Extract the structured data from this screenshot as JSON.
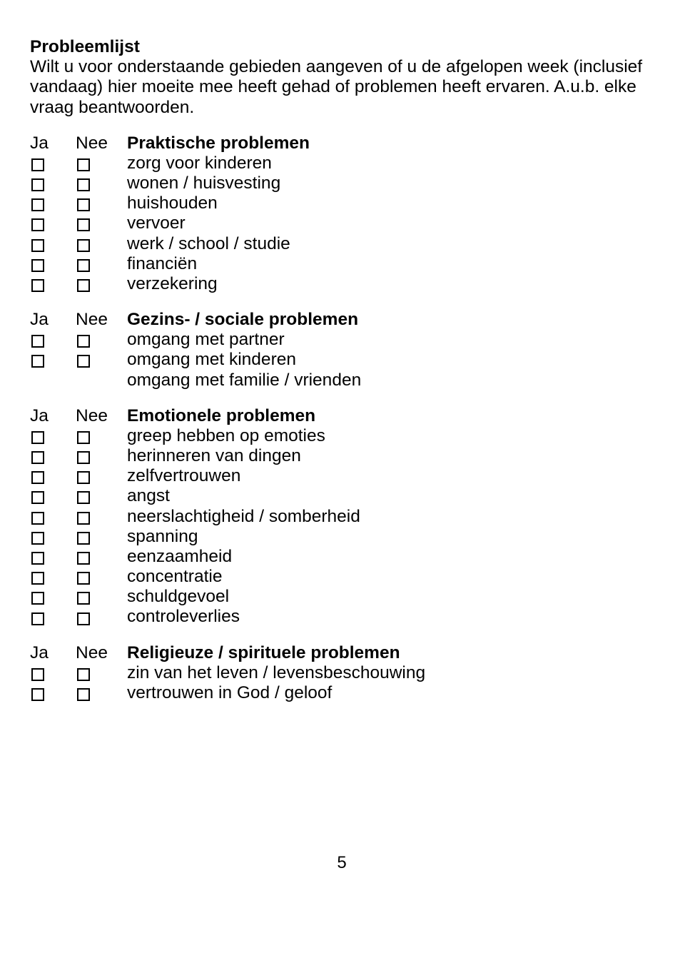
{
  "title": "Probleemlijst",
  "intro": "Wilt u voor onderstaande gebieden aangeven of u de afgelopen week (inclusief vandaag) hier moeite mee heeft gehad of problemen heeft ervaren. A.u.b. elke vraag beantwoorden.",
  "colJa": "Ja",
  "colNee": "Nee",
  "sections": [
    {
      "title": "Praktische problemen",
      "items": [
        "zorg voor kinderen",
        "wonen / huisvesting",
        "huishouden",
        "vervoer",
        "werk / school / studie",
        "financiën",
        "verzekering"
      ],
      "extraNoCheckbox": []
    },
    {
      "title": "Gezins- / sociale problemen",
      "items": [
        "omgang met partner",
        "omgang met kinderen"
      ],
      "extraNoCheckbox": [
        "omgang met familie / vrienden"
      ]
    },
    {
      "title": "Emotionele problemen",
      "items": [
        "greep hebben op emoties",
        "herinneren van dingen",
        "zelfvertrouwen",
        "angst",
        "neerslachtigheid / somberheid",
        "spanning",
        "eenzaamheid",
        "concentratie",
        "schuldgevoel",
        "controleverlies"
      ],
      "extraNoCheckbox": []
    },
    {
      "title": "Religieuze / spirituele problemen",
      "items": [
        "zin van het leven / levensbeschouwing",
        "vertrouwen in God / geloof"
      ],
      "extraNoCheckbox": []
    }
  ],
  "pageNumber": "5"
}
